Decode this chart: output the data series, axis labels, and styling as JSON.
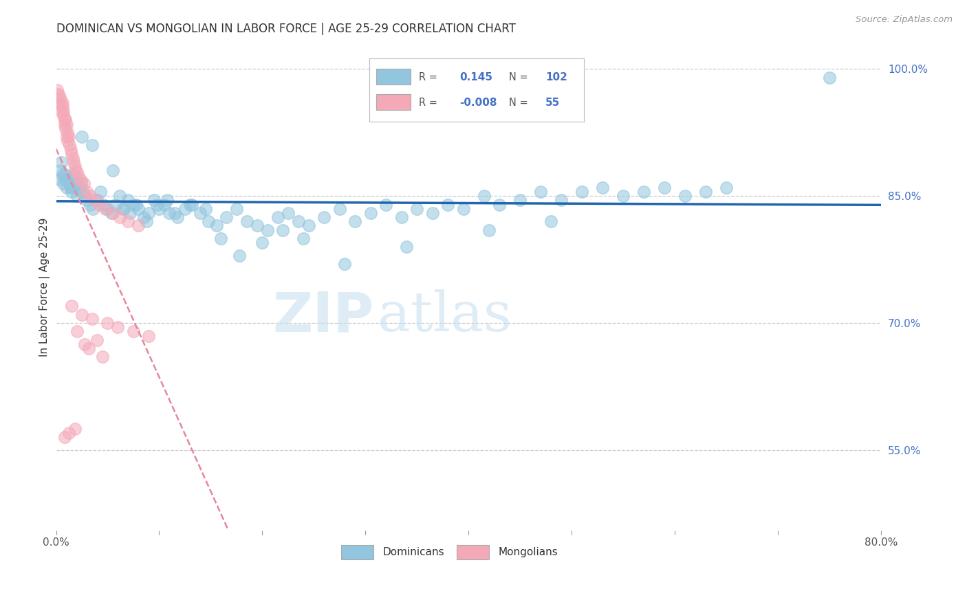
{
  "title": "DOMINICAN VS MONGOLIAN IN LABOR FORCE | AGE 25-29 CORRELATION CHART",
  "source": "Source: ZipAtlas.com",
  "ylabel": "In Labor Force | Age 25-29",
  "watermark_zip": "ZIP",
  "watermark_atlas": "atlas",
  "xlim": [
    0.0,
    0.8
  ],
  "ylim": [
    0.455,
    1.03
  ],
  "yticks_right": [
    0.55,
    0.7,
    0.85,
    1.0
  ],
  "ytick_right_labels": [
    "55.0%",
    "70.0%",
    "85.0%",
    "100.0%"
  ],
  "legend_blue_R": "0.145",
  "legend_blue_N": "102",
  "legend_pink_R": "-0.008",
  "legend_pink_N": "55",
  "blue_scatter_color": "#92C5DE",
  "pink_scatter_color": "#F4A9B8",
  "blue_line_color": "#2166AC",
  "pink_line_color": "#E8869A",
  "grid_color": "#CCCCCC",
  "dominicans_x": [
    0.003,
    0.004,
    0.005,
    0.006,
    0.007,
    0.008,
    0.009,
    0.01,
    0.011,
    0.012,
    0.013,
    0.014,
    0.015,
    0.016,
    0.017,
    0.018,
    0.019,
    0.02,
    0.022,
    0.024,
    0.026,
    0.028,
    0.03,
    0.033,
    0.036,
    0.04,
    0.043,
    0.046,
    0.05,
    0.054,
    0.058,
    0.062,
    0.066,
    0.07,
    0.075,
    0.08,
    0.085,
    0.09,
    0.095,
    0.1,
    0.105,
    0.11,
    0.118,
    0.125,
    0.132,
    0.14,
    0.148,
    0.156,
    0.165,
    0.175,
    0.185,
    0.195,
    0.205,
    0.215,
    0.225,
    0.235,
    0.245,
    0.26,
    0.275,
    0.29,
    0.305,
    0.32,
    0.335,
    0.35,
    0.365,
    0.38,
    0.395,
    0.415,
    0.43,
    0.45,
    0.47,
    0.49,
    0.51,
    0.53,
    0.55,
    0.57,
    0.59,
    0.61,
    0.63,
    0.65,
    0.025,
    0.035,
    0.055,
    0.065,
    0.072,
    0.078,
    0.088,
    0.098,
    0.108,
    0.115,
    0.13,
    0.145,
    0.16,
    0.178,
    0.2,
    0.22,
    0.24,
    0.28,
    0.34,
    0.42,
    0.48,
    0.75
  ],
  "dominicans_y": [
    0.87,
    0.88,
    0.89,
    0.875,
    0.865,
    0.87,
    0.875,
    0.86,
    0.87,
    0.865,
    0.87,
    0.86,
    0.855,
    0.86,
    0.875,
    0.865,
    0.87,
    0.85,
    0.86,
    0.865,
    0.855,
    0.85,
    0.845,
    0.84,
    0.835,
    0.845,
    0.855,
    0.84,
    0.835,
    0.83,
    0.84,
    0.85,
    0.835,
    0.845,
    0.84,
    0.835,
    0.825,
    0.83,
    0.845,
    0.835,
    0.84,
    0.83,
    0.825,
    0.835,
    0.84,
    0.83,
    0.82,
    0.815,
    0.825,
    0.835,
    0.82,
    0.815,
    0.81,
    0.825,
    0.83,
    0.82,
    0.815,
    0.825,
    0.835,
    0.82,
    0.83,
    0.84,
    0.825,
    0.835,
    0.83,
    0.84,
    0.835,
    0.85,
    0.84,
    0.845,
    0.855,
    0.845,
    0.855,
    0.86,
    0.85,
    0.855,
    0.86,
    0.85,
    0.855,
    0.86,
    0.92,
    0.91,
    0.88,
    0.835,
    0.83,
    0.84,
    0.82,
    0.84,
    0.845,
    0.83,
    0.84,
    0.835,
    0.8,
    0.78,
    0.795,
    0.81,
    0.8,
    0.77,
    0.79,
    0.81,
    0.82,
    0.99
  ],
  "mongolians_x": [
    0.001,
    0.002,
    0.003,
    0.003,
    0.004,
    0.005,
    0.005,
    0.006,
    0.006,
    0.007,
    0.007,
    0.008,
    0.008,
    0.009,
    0.009,
    0.01,
    0.01,
    0.011,
    0.011,
    0.012,
    0.013,
    0.014,
    0.015,
    0.016,
    0.017,
    0.018,
    0.019,
    0.02,
    0.022,
    0.024,
    0.027,
    0.03,
    0.033,
    0.038,
    0.042,
    0.048,
    0.055,
    0.062,
    0.07,
    0.08,
    0.015,
    0.025,
    0.035,
    0.05,
    0.06,
    0.075,
    0.09,
    0.04,
    0.02,
    0.028,
    0.032,
    0.045,
    0.018,
    0.012,
    0.008
  ],
  "mongolians_y": [
    0.975,
    0.97,
    0.968,
    0.96,
    0.965,
    0.958,
    0.95,
    0.96,
    0.955,
    0.95,
    0.945,
    0.94,
    0.935,
    0.94,
    0.93,
    0.935,
    0.92,
    0.925,
    0.915,
    0.92,
    0.91,
    0.905,
    0.9,
    0.895,
    0.89,
    0.885,
    0.88,
    0.878,
    0.872,
    0.868,
    0.865,
    0.855,
    0.85,
    0.845,
    0.84,
    0.835,
    0.83,
    0.825,
    0.82,
    0.815,
    0.72,
    0.71,
    0.705,
    0.7,
    0.695,
    0.69,
    0.685,
    0.68,
    0.69,
    0.675,
    0.67,
    0.66,
    0.575,
    0.57,
    0.565
  ]
}
